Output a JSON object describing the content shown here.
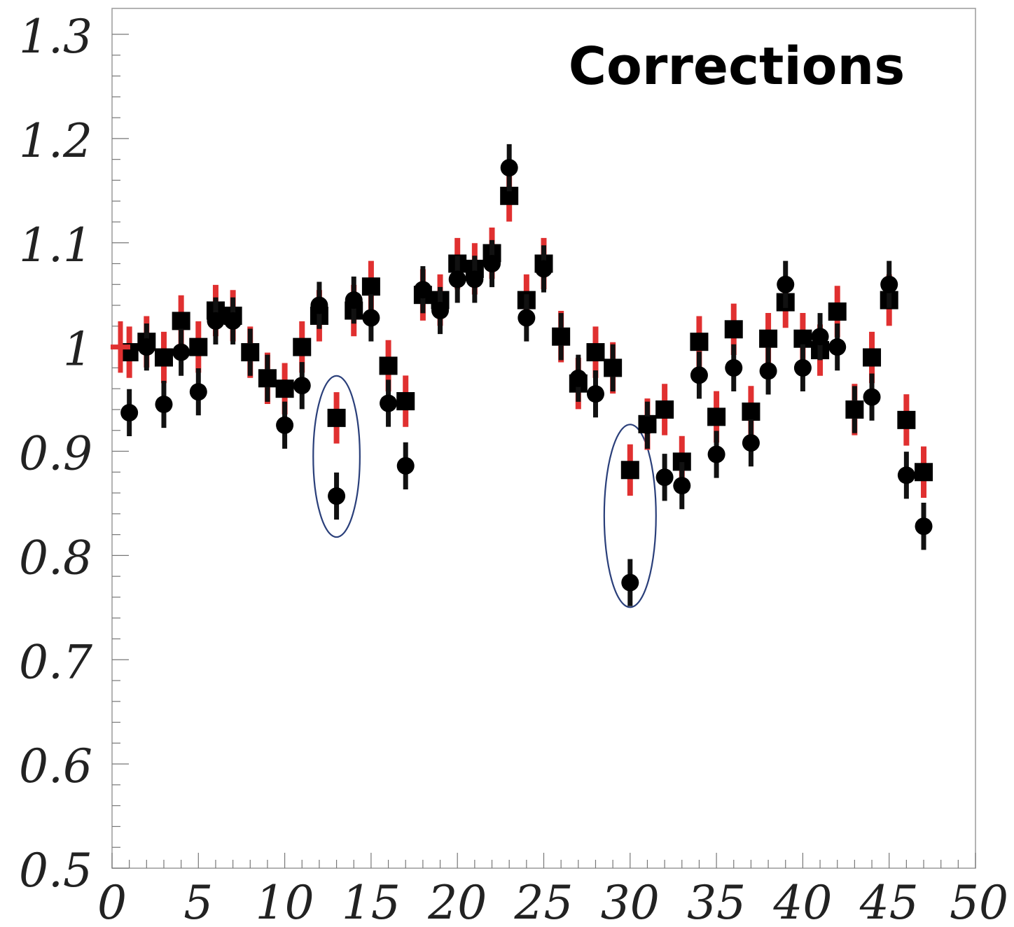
{
  "chart_data": {
    "type": "scatter",
    "title": "Corrections",
    "xlabel": "",
    "ylabel": "",
    "xlim": [
      0,
      50
    ],
    "ylim": [
      0.5,
      1.3
    ],
    "x_ticks": [
      "0",
      "5",
      "10",
      "15",
      "20",
      "25",
      "30",
      "35",
      "40",
      "45",
      "50"
    ],
    "y_ticks": [
      "0.5",
      "0.6",
      "0.7",
      "0.8",
      "0.9",
      "1",
      "1.1",
      "1.2",
      "1.3"
    ],
    "grid": false,
    "legend": "none",
    "series": [
      {
        "marker": "square",
        "color": "#000000",
        "error_color": "#e03030",
        "x": [
          1,
          2,
          3,
          4,
          5,
          6,
          7,
          8,
          9,
          10,
          11,
          12,
          13,
          14,
          15,
          16,
          17,
          18,
          19,
          20,
          21,
          22,
          23,
          24,
          25,
          26,
          27,
          28,
          29,
          30,
          31,
          32,
          33,
          34,
          35,
          36,
          37,
          38,
          39,
          40,
          41,
          42,
          43,
          44,
          45,
          46,
          47
        ],
        "y": [
          0.995,
          1.005,
          0.99,
          1.025,
          1.0,
          1.035,
          1.03,
          0.995,
          0.97,
          0.96,
          1.0,
          1.03,
          0.932,
          1.035,
          1.058,
          0.982,
          0.948,
          1.05,
          1.045,
          1.08,
          1.075,
          1.09,
          1.145,
          1.045,
          1.08,
          1.01,
          0.965,
          0.995,
          0.98,
          0.882,
          0.926,
          0.94,
          0.89,
          1.005,
          0.933,
          1.017,
          0.938,
          1.008,
          1.043,
          1.008,
          0.997,
          1.034,
          0.94,
          0.99,
          1.045,
          0.93,
          0.88
        ],
        "err": [
          0.02,
          0.02,
          0.02,
          0.02,
          0.02,
          0.02,
          0.02,
          0.02,
          0.02,
          0.02,
          0.02,
          0.02,
          0.02,
          0.02,
          0.02,
          0.02,
          0.02,
          0.02,
          0.02,
          0.02,
          0.02,
          0.02,
          0.02,
          0.02,
          0.02,
          0.02,
          0.02,
          0.02,
          0.02,
          0.02,
          0.02,
          0.02,
          0.02,
          0.02,
          0.02,
          0.02,
          0.02,
          0.02,
          0.02,
          0.02,
          0.02,
          0.02,
          0.02,
          0.02,
          0.02,
          0.02,
          0.02
        ]
      },
      {
        "marker": "circle",
        "color": "#000000",
        "error_color": "#111111",
        "x": [
          1,
          2,
          3,
          4,
          5,
          6,
          7,
          8,
          9,
          10,
          11,
          12,
          13,
          14,
          15,
          16,
          17,
          18,
          19,
          20,
          21,
          22,
          23,
          24,
          25,
          26,
          27,
          28,
          29,
          30,
          31,
          32,
          33,
          34,
          35,
          36,
          37,
          38,
          39,
          40,
          41,
          42,
          43,
          44,
          45,
          46,
          47
        ],
        "y": [
          0.937,
          1.0,
          0.945,
          0.995,
          0.957,
          1.025,
          1.025,
          0.995,
          0.97,
          0.925,
          0.963,
          1.04,
          0.857,
          1.045,
          1.028,
          0.946,
          0.886,
          1.055,
          1.035,
          1.065,
          1.065,
          1.08,
          1.172,
          1.028,
          1.075,
          1.01,
          0.97,
          0.955,
          0.98,
          0.774,
          0.925,
          0.875,
          0.867,
          0.973,
          0.897,
          0.98,
          0.908,
          0.977,
          1.06,
          0.98,
          1.01,
          1.0,
          0.94,
          0.952,
          1.06,
          0.877,
          0.828
        ],
        "err": [
          0.018,
          0.018,
          0.018,
          0.018,
          0.018,
          0.018,
          0.018,
          0.018,
          0.018,
          0.018,
          0.018,
          0.018,
          0.018,
          0.018,
          0.018,
          0.018,
          0.018,
          0.018,
          0.018,
          0.018,
          0.018,
          0.018,
          0.018,
          0.018,
          0.018,
          0.018,
          0.018,
          0.018,
          0.018,
          0.018,
          0.018,
          0.018,
          0.018,
          0.018,
          0.018,
          0.018,
          0.018,
          0.018,
          0.018,
          0.018,
          0.018,
          0.018,
          0.018,
          0.018,
          0.018,
          0.018,
          0.018
        ]
      },
      {
        "marker": "cross",
        "color": "#e03030",
        "x": [
          0
        ],
        "y": [
          1.0
        ],
        "err": [
          0.02
        ]
      }
    ],
    "annotations": [
      {
        "type": "ellipse",
        "x": 13,
        "y": 0.895,
        "rx": 1.35,
        "ry": 0.075,
        "color": "#2a3f7a"
      },
      {
        "type": "ellipse",
        "x": 30,
        "y": 0.838,
        "rx": 1.5,
        "ry": 0.085,
        "color": "#2a3f7a"
      }
    ]
  }
}
